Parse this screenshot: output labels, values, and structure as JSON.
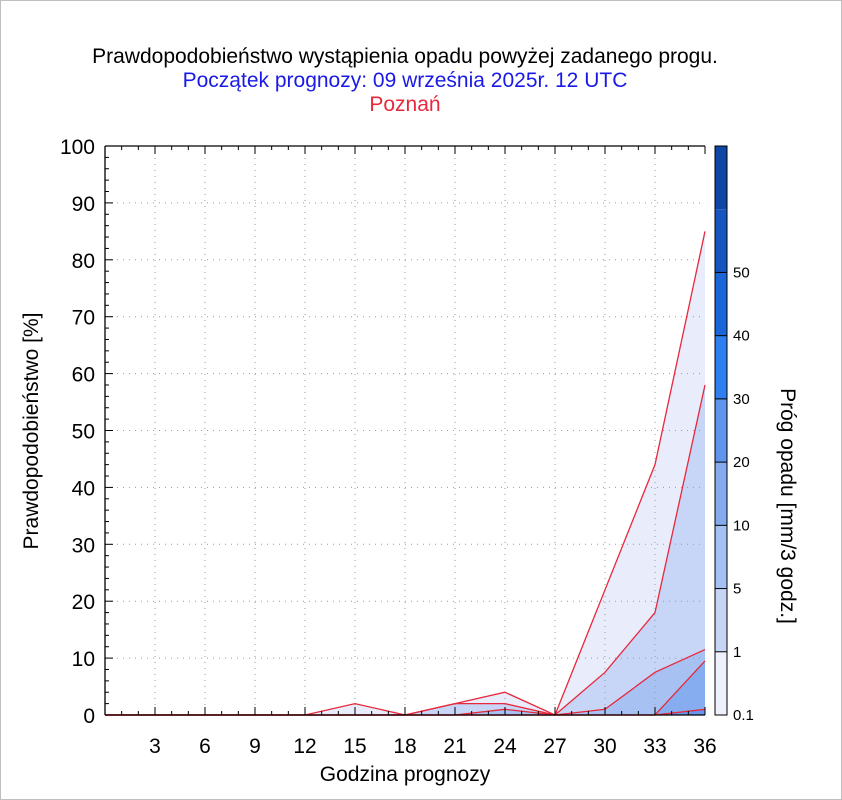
{
  "chart_data": {
    "type": "area",
    "title": "Prawdopodobieństwo wystąpienia opadu powyżej zadanego progu.",
    "subtitle": "Początek prognozy: 09 września 2025r. 12 UTC",
    "location": "Poznań",
    "xlabel": "Godzina prognozy",
    "ylabel": "Prawdopodobieństwo [%]",
    "xlim": [
      0,
      36
    ],
    "ylim": [
      0,
      100
    ],
    "x_ticks": [
      3,
      6,
      9,
      12,
      15,
      18,
      21,
      24,
      27,
      30,
      33,
      36
    ],
    "y_ticks": [
      0,
      10,
      20,
      30,
      40,
      50,
      60,
      70,
      80,
      90,
      100
    ],
    "grid": true,
    "x": [
      0,
      3,
      6,
      9,
      12,
      15,
      18,
      21,
      24,
      27,
      30,
      33,
      36
    ],
    "series": [
      {
        "threshold": 0.1,
        "color": "#e8ecfb",
        "values": [
          0,
          0,
          0,
          0,
          0,
          2,
          0,
          2,
          4,
          0,
          22,
          44,
          85
        ]
      },
      {
        "threshold": 1,
        "color": "#c7d6f6",
        "values": [
          0,
          0,
          0,
          0,
          0,
          0,
          0,
          2,
          2,
          0,
          7.5,
          18,
          58
        ]
      },
      {
        "threshold": 5,
        "color": "#a7c2f2",
        "values": [
          0,
          0,
          0,
          0,
          0,
          0,
          0,
          0,
          1,
          0,
          1,
          7.5,
          11.5
        ]
      },
      {
        "threshold": 10,
        "color": "#86adf0",
        "values": [
          0,
          0,
          0,
          0,
          0,
          0,
          0,
          0,
          0,
          0,
          0,
          0,
          9.5
        ]
      },
      {
        "threshold": 20,
        "color": "#6696ee",
        "values": [
          0,
          0,
          0,
          0,
          0,
          0,
          0,
          0,
          0,
          0,
          0,
          0,
          1
        ]
      }
    ],
    "line_color": "#e8283c",
    "colorbar": {
      "label": "Próg opadu [mm/3 godz.]",
      "labels": [
        "0.1",
        "1",
        "5",
        "10",
        "20",
        "30",
        "40",
        "50"
      ],
      "bands": [
        {
          "from": 0.1,
          "to": 1,
          "color": "#eef1fc"
        },
        {
          "from": 1,
          "to": 5,
          "color": "#c6d5f6"
        },
        {
          "from": 5,
          "to": 10,
          "color": "#a5c0f2"
        },
        {
          "from": 10,
          "to": 20,
          "color": "#85abee"
        },
        {
          "from": 20,
          "to": 30,
          "color": "#5f95ec"
        },
        {
          "from": 30,
          "to": 40,
          "color": "#2f7ff0"
        },
        {
          "from": 40,
          "to": 50,
          "color": "#1a66d8"
        },
        {
          "from": 50,
          "to": 60,
          "color": "#1455c0"
        },
        {
          "from": 60,
          "to": 70,
          "color": "#0e46a8"
        }
      ]
    }
  },
  "colors": {
    "title": "#000000",
    "subtitle": "#1a1ae6",
    "location": "#e8283c"
  }
}
